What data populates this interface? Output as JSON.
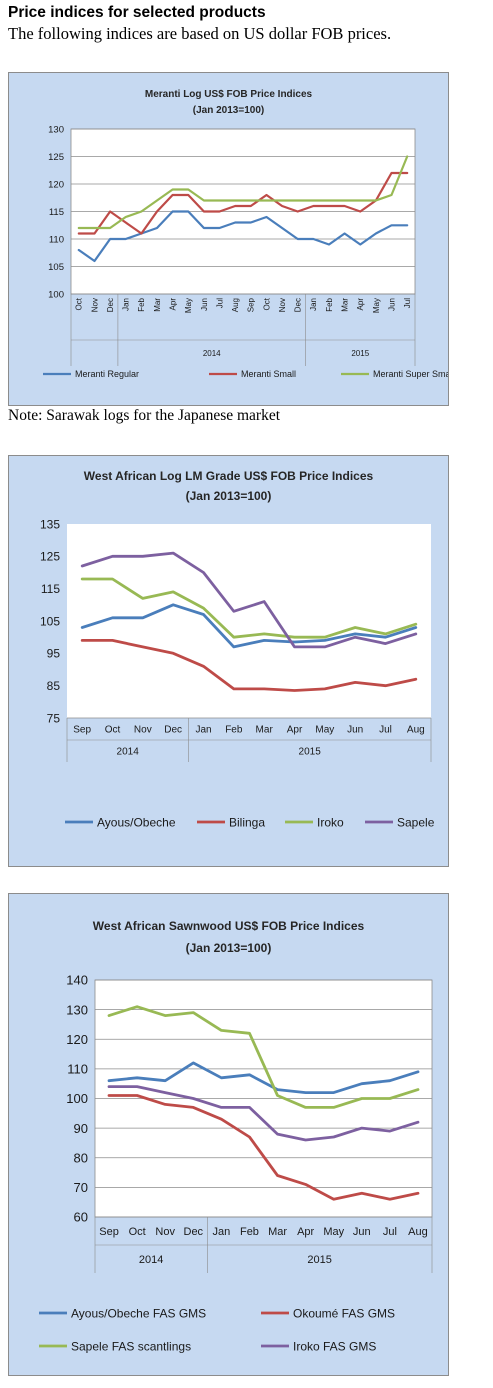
{
  "header": {
    "title": "Price indices for selected products",
    "subtitle": "The following indices are based on US dollar FOB prices."
  },
  "note": "Note: Sarawak logs for the Japanese market",
  "chart_data": [
    {
      "type": "line",
      "title": "Meranti Log US$ FOB Price Indices",
      "subtitle": "(Jan 2013=100)",
      "categories": [
        "Oct",
        "Nov",
        "Dec",
        "Jan",
        "Feb",
        "Mar",
        "Apr",
        "May",
        "Jun",
        "Jul",
        "Aug",
        "Sep",
        "Oct",
        "Nov",
        "Dec",
        "Jan",
        "Feb",
        "Mar",
        "Apr",
        "May",
        "Jun",
        "Jul"
      ],
      "year_groups": [
        {
          "label": "",
          "count": 3
        },
        {
          "label": "2014",
          "count": 12
        },
        {
          "label": "2015",
          "count": 7
        }
      ],
      "ylim": [
        100,
        130
      ],
      "yticks": [
        100,
        105,
        110,
        115,
        120,
        125,
        130
      ],
      "grid": true,
      "legend_position": "bottom",
      "series": [
        {
          "name": "Meranti Regular",
          "color": "#4a7ebb",
          "values": [
            108,
            106,
            110,
            110,
            111,
            112,
            115,
            115,
            112,
            112,
            113,
            113,
            114,
            112,
            110,
            110,
            109,
            111,
            109,
            111,
            112.5,
            112.5
          ]
        },
        {
          "name": "Meranti Small",
          "color": "#be4b48",
          "values": [
            111,
            111,
            115,
            113,
            111,
            115,
            118,
            118,
            115,
            115,
            116,
            116,
            118,
            116,
            115,
            116,
            116,
            116,
            115,
            117,
            122,
            122
          ]
        },
        {
          "name": "Meranti Super Small",
          "color": "#98b954",
          "values": [
            112,
            112,
            112,
            114,
            115,
            117,
            119,
            119,
            117,
            117,
            117,
            117,
            117,
            117,
            117,
            117,
            117,
            117,
            117,
            117,
            118,
            125
          ]
        }
      ]
    },
    {
      "type": "line",
      "title": "West African Log LM Grade US$ FOB Price Indices",
      "subtitle": "(Jan 2013=100)",
      "categories": [
        "Sep",
        "Oct",
        "Nov",
        "Dec",
        "Jan",
        "Feb",
        "Mar",
        "Apr",
        "May",
        "Jun",
        "Jul",
        "Aug"
      ],
      "year_groups": [
        {
          "label": "2014",
          "count": 4
        },
        {
          "label": "2015",
          "count": 8
        }
      ],
      "ylim": [
        75,
        135
      ],
      "yticks": [
        75,
        85,
        95,
        105,
        115,
        125,
        135
      ],
      "grid": false,
      "legend_position": "bottom",
      "series": [
        {
          "name": "Ayous/Obeche",
          "color": "#4a7ebb",
          "values": [
            103,
            106,
            106,
            110,
            107,
            97,
            99,
            98.5,
            99,
            101,
            100,
            103
          ]
        },
        {
          "name": "Bilinga",
          "color": "#be4b48",
          "values": [
            99,
            99,
            97,
            95,
            91,
            84,
            84,
            83.5,
            84,
            86,
            85,
            87
          ]
        },
        {
          "name": "Iroko",
          "color": "#98b954",
          "values": [
            118,
            118,
            112,
            114,
            109,
            100,
            101,
            100,
            100,
            103,
            101,
            104
          ]
        },
        {
          "name": "Sapele",
          "color": "#7d60a0",
          "values": [
            122,
            125,
            125,
            126,
            120,
            108,
            111,
            97,
            97,
            100,
            98,
            101
          ]
        }
      ]
    },
    {
      "type": "line",
      "title": "West African Sawnwood US$ FOB Price Indices",
      "subtitle": "(Jan 2013=100)",
      "categories": [
        "Sep",
        "Oct",
        "Nov",
        "Dec",
        "Jan",
        "Feb",
        "Mar",
        "Apr",
        "May",
        "Jun",
        "Jul",
        "Aug"
      ],
      "year_groups": [
        {
          "label": "2014",
          "count": 4
        },
        {
          "label": "2015",
          "count": 8
        }
      ],
      "ylim": [
        60,
        140
      ],
      "yticks": [
        60,
        70,
        80,
        90,
        100,
        110,
        120,
        130,
        140
      ],
      "grid": true,
      "legend_position": "bottom",
      "series": [
        {
          "name": "Ayous/Obeche FAS GMS",
          "color": "#4a7ebb",
          "values": [
            106,
            107,
            106,
            112,
            107,
            108,
            103,
            102,
            102,
            105,
            106,
            109
          ]
        },
        {
          "name": "Okoumé  FAS GMS",
          "color": "#be4b48",
          "values": [
            101,
            101,
            98,
            97,
            93,
            87,
            74,
            71,
            66,
            68,
            66,
            68
          ]
        },
        {
          "name": "Sapele FAS scantlings",
          "color": "#98b954",
          "values": [
            128,
            131,
            128,
            129,
            123,
            122,
            101,
            97,
            97,
            100,
            100,
            103
          ]
        },
        {
          "name": "Iroko FAS GMS",
          "color": "#7d60a0",
          "values": [
            104,
            104,
            102,
            100,
            97,
            97,
            88,
            86,
            87,
            90,
            89,
            92
          ]
        }
      ]
    }
  ]
}
